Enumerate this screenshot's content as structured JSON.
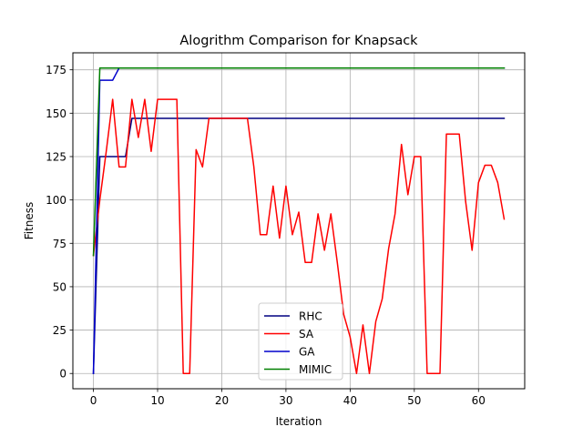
{
  "chart_data": {
    "type": "line",
    "title": "Alogrithm Comparison for Knapsack",
    "xlabel": "Iteration",
    "ylabel": "Fitness",
    "xlim": [
      -3.2,
      67.2
    ],
    "ylim": [
      -8.8,
      184.8
    ],
    "xticks": [
      0,
      10,
      20,
      30,
      40,
      50,
      60
    ],
    "yticks": [
      0,
      25,
      50,
      75,
      100,
      125,
      150,
      175
    ],
    "grid": true,
    "legend_position": "lower center",
    "series": [
      {
        "name": "RHC",
        "color": "#000080",
        "x": [
          0,
          1,
          2,
          3,
          4,
          5,
          6,
          64
        ],
        "y": [
          0,
          125,
          125,
          125,
          125,
          125,
          147,
          147
        ]
      },
      {
        "name": "SA",
        "color": "#ff0000",
        "x": [
          0,
          1,
          2,
          3,
          4,
          5,
          6,
          7,
          8,
          9,
          10,
          11,
          12,
          13,
          14,
          15,
          16,
          17,
          18,
          19,
          20,
          21,
          22,
          23,
          24,
          25,
          26,
          27,
          28,
          29,
          30,
          31,
          32,
          33,
          34,
          35,
          36,
          37,
          38,
          39,
          40,
          41,
          42,
          43,
          44,
          45,
          46,
          47,
          48,
          49,
          50,
          51,
          52,
          53,
          54,
          55,
          56,
          57,
          58,
          59,
          60,
          61,
          62,
          63,
          64
        ],
        "y": [
          68,
          100,
          128,
          158,
          119,
          119,
          158,
          136,
          158,
          128,
          158,
          158,
          158,
          158,
          0,
          0,
          129,
          119,
          147,
          147,
          147,
          147,
          147,
          147,
          147,
          119,
          80,
          80,
          108,
          78,
          108,
          80,
          93,
          64,
          64,
          92,
          71,
          92,
          64,
          34,
          21,
          0,
          28,
          0,
          30,
          43,
          72,
          92,
          132,
          103,
          125,
          125,
          0,
          0,
          0,
          138,
          138,
          138,
          99,
          71,
          110,
          120,
          120,
          110,
          89
        ]
      },
      {
        "name": "GA",
        "color": "#0000cc",
        "x": [
          0,
          1,
          2,
          3,
          4,
          64
        ],
        "y": [
          0,
          169,
          169,
          169,
          176,
          176
        ]
      },
      {
        "name": "MIMIC",
        "color": "#008000",
        "x": [
          0,
          1,
          64
        ],
        "y": [
          68,
          176,
          176
        ]
      }
    ]
  }
}
